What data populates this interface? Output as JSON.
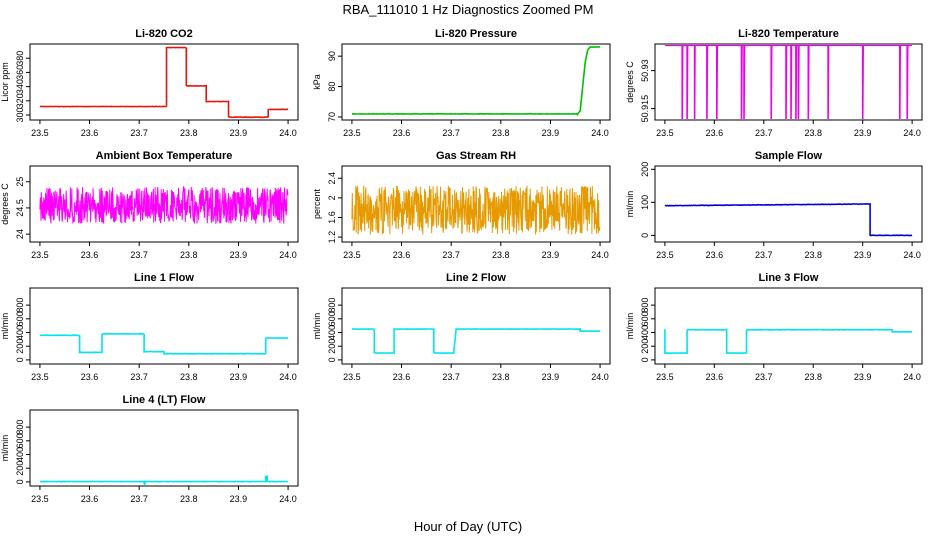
{
  "figure": {
    "title": "RBA_111010  1 Hz Diagnostics Zoomed PM",
    "xlabel": "Hour of Day (UTC)"
  },
  "chart_data": [
    {
      "type": "line",
      "title": "Li-820 CO2",
      "ylabel": "Licor ppm",
      "color": "#e8140a",
      "xlim": [
        23.48,
        24.02
      ],
      "ylim": [
        293,
        400
      ],
      "xticks": [
        "23.5",
        "23.6",
        "23.7",
        "23.8",
        "23.9",
        "24.0"
      ],
      "yticks": [
        300,
        320,
        340,
        360,
        380
      ],
      "series": [
        {
          "name": "CO2",
          "x": [
            23.5,
            23.755,
            23.755,
            23.795,
            23.795,
            23.835,
            23.835,
            23.88,
            23.88,
            23.96,
            23.96,
            24.0
          ],
          "y": [
            312,
            312,
            395,
            395,
            341,
            341,
            319,
            319,
            297,
            297,
            308,
            308
          ]
        }
      ]
    },
    {
      "type": "line",
      "title": "Li-820 Pressure",
      "ylabel": "kPa",
      "color": "#00c000",
      "xlim": [
        23.48,
        24.02
      ],
      "ylim": [
        69,
        94
      ],
      "xticks": [
        "23.5",
        "23.6",
        "23.7",
        "23.8",
        "23.9",
        "24.0"
      ],
      "yticks": [
        70,
        80,
        90
      ],
      "series": [
        {
          "name": "Pressure",
          "x": [
            23.5,
            23.955,
            23.96,
            23.965,
            23.97,
            23.975,
            23.98,
            24.0
          ],
          "y": [
            71,
            71,
            72,
            80,
            88,
            92,
            93,
            93
          ]
        }
      ]
    },
    {
      "type": "line",
      "title": "Li-820 Temperature",
      "ylabel": "degrees C",
      "color": "#ee00ee",
      "xlim": [
        23.48,
        24.02
      ],
      "ylim": [
        50.9105,
        50.9405
      ],
      "xticks": [
        "23.5",
        "23.6",
        "23.7",
        "23.8",
        "23.9",
        "24.0"
      ],
      "yticks": [
        50.915,
        50.93
      ],
      "series": [
        {
          "name": "Temperature",
          "baseline": 50.94,
          "low": 50.91,
          "dips": [
            23.535,
            23.545,
            23.56,
            23.585,
            23.605,
            23.655,
            23.66,
            23.715,
            23.745,
            23.755,
            23.765,
            23.77,
            23.79,
            23.83,
            23.9,
            23.975,
            23.99
          ]
        }
      ]
    },
    {
      "type": "line",
      "title": "Ambient Box Temperature",
      "ylabel": "degrees C",
      "color": "#ff00ff",
      "xlim": [
        23.48,
        24.02
      ],
      "ylim": [
        23.85,
        25.3
      ],
      "xticks": [
        "23.5",
        "23.6",
        "23.7",
        "23.8",
        "23.9",
        "24.0"
      ],
      "yticks": [
        24.0,
        24.5,
        25.0
      ],
      "series": [
        {
          "name": "Ambient",
          "mean": 24.55,
          "noise": 0.35,
          "x0": 23.5,
          "x1": 24.0
        }
      ]
    },
    {
      "type": "line",
      "title": "Gas Stream RH",
      "ylabel": "percent",
      "color": "#e69a00",
      "xlim": [
        23.48,
        24.02
      ],
      "ylim": [
        1.1,
        2.65
      ],
      "xticks": [
        "23.5",
        "23.6",
        "23.7",
        "23.8",
        "23.9",
        "24.0"
      ],
      "yticks": [
        1.2,
        1.6,
        2.0,
        2.4
      ],
      "series": [
        {
          "name": "RH",
          "mean": 1.75,
          "noise": 0.5,
          "x0": 23.5,
          "x1": 24.0
        }
      ]
    },
    {
      "type": "line",
      "title": "Sample Flow",
      "ylabel": "ml/min",
      "color": "#0000dd",
      "xlim": [
        23.48,
        24.02
      ],
      "ylim": [
        -20,
        210
      ],
      "xticks": [
        "23.5",
        "23.6",
        "23.7",
        "23.8",
        "23.9",
        "24.0"
      ],
      "yticks": [
        0,
        100,
        200
      ],
      "series": [
        {
          "name": "Sample",
          "x": [
            23.5,
            23.915,
            23.915,
            24.0
          ],
          "y": [
            90,
            95,
            0,
            0
          ]
        }
      ]
    },
    {
      "type": "line",
      "title": "Line 1 Flow",
      "ylabel": "ml/min",
      "color": "#00e5ee",
      "xlim": [
        23.48,
        24.02
      ],
      "ylim": [
        -60,
        1050
      ],
      "xticks": [
        "23.5",
        "23.6",
        "23.7",
        "23.8",
        "23.9",
        "24.0"
      ],
      "yticks": [
        0,
        200,
        400,
        600,
        800
      ],
      "series": [
        {
          "name": "Line1",
          "x": [
            23.5,
            23.58,
            23.58,
            23.625,
            23.625,
            23.71,
            23.71,
            23.75,
            23.75,
            23.955,
            23.955,
            24.0
          ],
          "y": [
            360,
            360,
            110,
            110,
            380,
            380,
            120,
            120,
            90,
            90,
            320,
            320
          ]
        }
      ]
    },
    {
      "type": "line",
      "title": "Line 2 Flow",
      "ylabel": "ml/min",
      "color": "#00e5ee",
      "xlim": [
        23.48,
        24.02
      ],
      "ylim": [
        -60,
        1050
      ],
      "xticks": [
        "23.5",
        "23.6",
        "23.7",
        "23.8",
        "23.9",
        "24.0"
      ],
      "yticks": [
        0,
        200,
        400,
        600,
        800
      ],
      "series": [
        {
          "name": "Line2",
          "x": [
            23.5,
            23.545,
            23.545,
            23.585,
            23.585,
            23.665,
            23.665,
            23.705,
            23.705,
            23.71,
            23.71,
            23.96,
            23.96,
            24.0
          ],
          "y": [
            450,
            450,
            100,
            100,
            450,
            450,
            100,
            100,
            100,
            450,
            450,
            450,
            420,
            420
          ]
        }
      ]
    },
    {
      "type": "line",
      "title": "Line 3 Flow",
      "ylabel": "ml/min",
      "color": "#00e5ee",
      "xlim": [
        23.48,
        24.02
      ],
      "ylim": [
        -60,
        1050
      ],
      "xticks": [
        "23.5",
        "23.6",
        "23.7",
        "23.8",
        "23.9",
        "24.0"
      ],
      "yticks": [
        0,
        200,
        400,
        600,
        800
      ],
      "series": [
        {
          "name": "Line3",
          "x": [
            23.5,
            23.5,
            23.505,
            23.505,
            23.545,
            23.545,
            23.625,
            23.625,
            23.665,
            23.665,
            23.96,
            23.96,
            24.0
          ],
          "y": [
            450,
            100,
            100,
            100,
            100,
            440,
            440,
            100,
            100,
            440,
            440,
            410,
            410
          ]
        }
      ]
    },
    {
      "type": "line",
      "title": "Line 4 (LT) Flow",
      "ylabel": "ml/min",
      "color": "#00e5ee",
      "xlim": [
        23.48,
        24.02
      ],
      "ylim": [
        -60,
        1050
      ],
      "xticks": [
        "23.5",
        "23.6",
        "23.7",
        "23.8",
        "23.9",
        "24.0"
      ],
      "yticks": [
        0,
        200,
        400,
        600,
        800
      ],
      "series": [
        {
          "name": "Line4",
          "x": [
            23.5,
            23.71,
            23.71,
            23.712,
            23.712,
            23.955,
            23.955,
            23.958,
            23.958,
            24.0
          ],
          "y": [
            5,
            5,
            -35,
            -35,
            5,
            5,
            80,
            80,
            5,
            5
          ]
        }
      ]
    }
  ]
}
